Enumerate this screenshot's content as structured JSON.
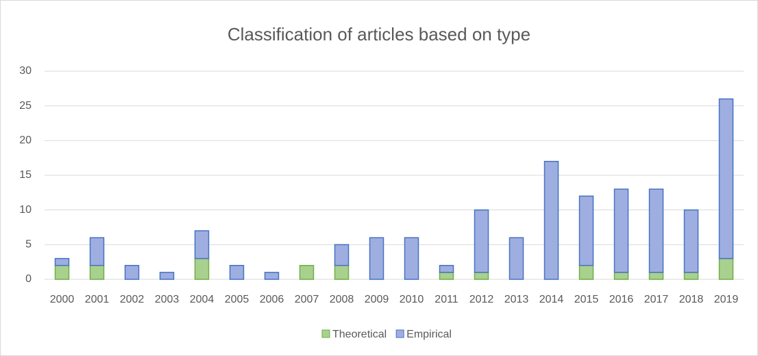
{
  "chart_data": {
    "type": "stacked_bar",
    "title": "Classification of articles based on type",
    "categories": [
      "2000",
      "2001",
      "2002",
      "2003",
      "2004",
      "2005",
      "2006",
      "2007",
      "2008",
      "2009",
      "2010",
      "2011",
      "2012",
      "2013",
      "2014",
      "2015",
      "2016",
      "2017",
      "2018",
      "2019"
    ],
    "series": [
      {
        "name": "Theoretical",
        "color": "#a9d18e",
        "stroke": "#70ad47",
        "values": [
          2,
          2,
          0,
          0,
          3,
          0,
          0,
          2,
          2,
          0,
          0,
          1,
          1,
          0,
          0,
          2,
          1,
          1,
          1,
          3
        ]
      },
      {
        "name": "Empirical",
        "color": "#9faee0",
        "stroke": "#4472c4",
        "values": [
          1,
          4,
          2,
          1,
          4,
          2,
          1,
          0,
          3,
          6,
          6,
          1,
          9,
          6,
          17,
          10,
          12,
          12,
          9,
          23
        ]
      }
    ],
    "ylim": [
      0,
      30
    ],
    "yticks": [
      0,
      5,
      10,
      15,
      20,
      25,
      30
    ],
    "grid": true,
    "legend": "bottom"
  }
}
